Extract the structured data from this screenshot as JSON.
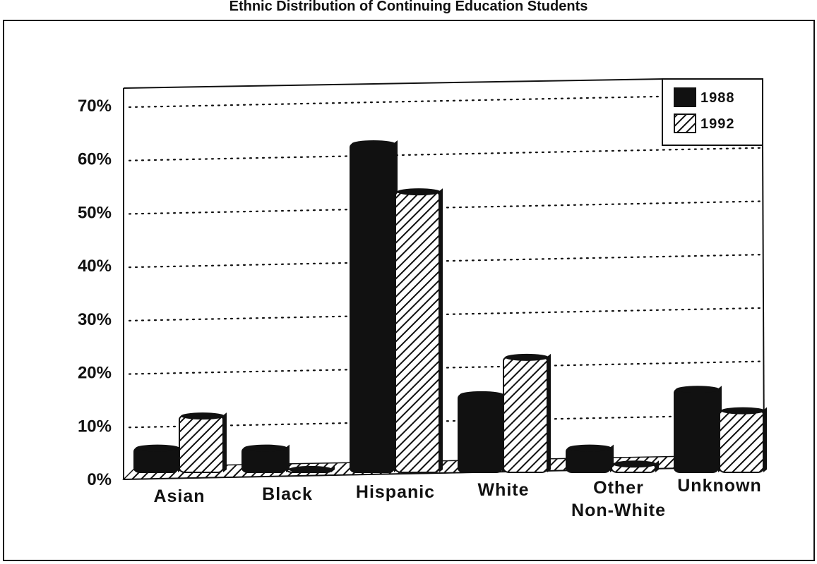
{
  "chart_data": {
    "type": "bar",
    "title": "Ethnic Distribution of Continuing Education Students",
    "categories": [
      "Asian",
      "Black",
      "Hispanic",
      "White",
      "Other Non-White",
      "Unknown"
    ],
    "series": [
      {
        "name": "1988",
        "values": [
          6,
          6,
          63,
          16,
          6,
          17
        ],
        "fill": "#111111"
      },
      {
        "name": "1992",
        "values": [
          12,
          2,
          54,
          23,
          3,
          13
        ],
        "fill": "hatch"
      }
    ],
    "y_ticks": [
      "0%",
      "10%",
      "20%",
      "30%",
      "40%",
      "50%",
      "60%",
      "70%"
    ],
    "ylim": [
      0,
      70
    ],
    "grid": "dotted horizontal",
    "legend_position": "top-right",
    "style": "3d"
  },
  "colors": {
    "bar_dark": "#111111",
    "hatch_fg": "#111111",
    "hatch_bg": "#ffffff",
    "grid": "#111111"
  }
}
